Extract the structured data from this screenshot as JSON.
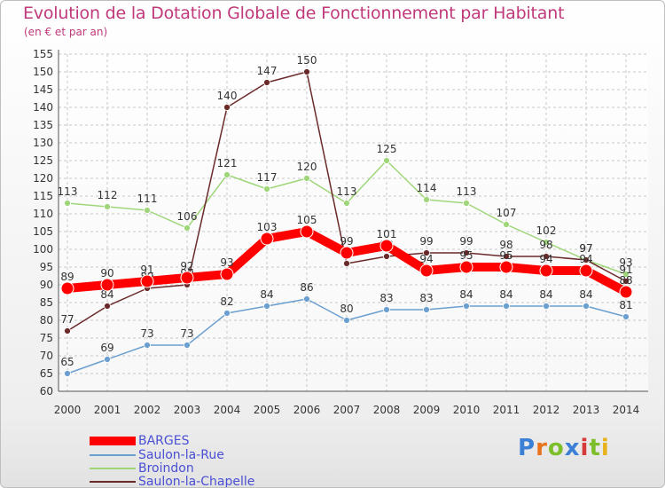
{
  "chart_data": {
    "type": "line",
    "title": "Evolution de la Dotation Globale de Fonctionnement par Habitant",
    "subtitle": "(en € et par an)",
    "xlabel": "",
    "ylabel": "",
    "ylim": [
      60,
      155
    ],
    "ytick_step": 5,
    "x": [
      "2000",
      "2001",
      "2002",
      "2003",
      "2004",
      "2005",
      "2006",
      "2007",
      "2008",
      "2009",
      "2010",
      "2011",
      "2012",
      "2013",
      "2014"
    ],
    "grid": true,
    "legend_position": "bottom-left",
    "series": [
      {
        "name": "BARGES",
        "color": "#ff0000",
        "values": [
          89,
          90,
          91,
          92,
          93,
          103,
          105,
          99,
          101,
          94,
          95,
          95,
          94,
          94,
          88
        ]
      },
      {
        "name": "Saulon-la-Rue",
        "color": "#6a9fcf",
        "values": [
          65,
          69,
          73,
          73,
          82,
          84,
          86,
          80,
          83,
          83,
          84,
          84,
          84,
          84,
          81
        ]
      },
      {
        "name": "Broindon",
        "color": "#9fd67a",
        "values": [
          113,
          112,
          111,
          106,
          121,
          117,
          120,
          113,
          125,
          114,
          113,
          107,
          102,
          97,
          93
        ]
      },
      {
        "name": "Saulon-la-Chapelle",
        "color": "#6b2a2a",
        "values": [
          77,
          84,
          89,
          90,
          140,
          147,
          150,
          96,
          98,
          99,
          99,
          98,
          98,
          97,
          91
        ]
      }
    ]
  },
  "logo": {
    "text": "Proxiti"
  }
}
